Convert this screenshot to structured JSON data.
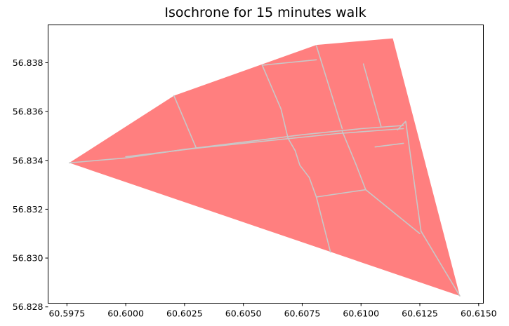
{
  "chart_data": {
    "type": "map",
    "title": "Isochrone for 15 minutes walk",
    "xlabel": "",
    "ylabel": "",
    "xlim": [
      60.5967,
      60.6152
    ],
    "ylim": [
      56.82815,
      56.83955
    ],
    "x_ticks": [
      60.5975,
      60.6,
      60.6025,
      60.605,
      60.6075,
      60.61,
      60.6125,
      60.615
    ],
    "x_tick_labels": [
      "60.5975",
      "60.6000",
      "60.6025",
      "60.6050",
      "60.6075",
      "60.6100",
      "60.6125",
      "60.6150"
    ],
    "y_ticks": [
      56.828,
      56.83,
      56.832,
      56.834,
      56.836,
      56.838
    ],
    "y_tick_labels": [
      "56.828",
      "56.830",
      "56.832",
      "56.834",
      "56.836",
      "56.838"
    ],
    "grid": false,
    "polygon_color": "#ff7f7f",
    "street_color": "#c8c8c8",
    "isochrone_polygon": [
      [
        60.5976,
        56.8339
      ],
      [
        60.60205,
        56.83665
      ],
      [
        60.6081,
        56.83873
      ],
      [
        60.61135,
        56.839
      ],
      [
        60.6142,
        56.82845
      ]
    ],
    "streets": [
      [
        [
          60.5976,
          56.8339
        ],
        [
          60.6,
          56.8341
        ],
        [
          60.6025,
          56.83445
        ],
        [
          60.605,
          56.83475
        ],
        [
          60.6075,
          56.83505
        ],
        [
          60.61,
          56.8353
        ],
        [
          60.6118,
          56.83543
        ]
      ],
      [
        [
          60.6,
          56.83415
        ],
        [
          60.603,
          56.8345
        ],
        [
          60.606,
          56.8348
        ],
        [
          60.609,
          56.8351
        ],
        [
          60.6118,
          56.8353
        ]
      ],
      [
        [
          60.61155,
          56.83525
        ],
        [
          60.6119,
          56.8356
        ],
        [
          60.61255,
          56.8311
        ],
        [
          60.6142,
          56.82845
        ]
      ],
      [
        [
          60.60205,
          56.83665
        ],
        [
          60.603,
          56.8345
        ]
      ],
      [
        [
          60.6058,
          56.8379
        ],
        [
          60.6081,
          56.83812
        ]
      ],
      [
        [
          60.6081,
          56.8387
        ],
        [
          60.6092,
          56.8353
        ]
      ],
      [
        [
          60.6058,
          56.8379
        ],
        [
          60.6066,
          56.8361
        ],
        [
          60.6069,
          56.8349
        ],
        [
          60.6072,
          56.8344
        ],
        [
          60.6074,
          56.8338
        ],
        [
          60.6078,
          56.8333
        ],
        [
          60.6081,
          56.8325
        ],
        [
          60.6087,
          56.83025
        ]
      ],
      [
        [
          60.6081,
          56.8325
        ],
        [
          60.6102,
          56.8328
        ],
        [
          60.6125,
          56.831
        ]
      ],
      [
        [
          60.6092,
          56.8352
        ],
        [
          60.6095,
          56.8345
        ],
        [
          60.6098,
          56.8338
        ],
        [
          60.6102,
          56.8328
        ]
      ],
      [
        [
          60.6101,
          56.83795
        ],
        [
          60.61085,
          56.8354
        ]
      ],
      [
        [
          60.6106,
          56.83455
        ],
        [
          60.6118,
          56.8347
        ]
      ],
      [
        [
          60.6014,
          56.8343
        ],
        [
          60.6025,
          56.83445
        ]
      ]
    ]
  }
}
